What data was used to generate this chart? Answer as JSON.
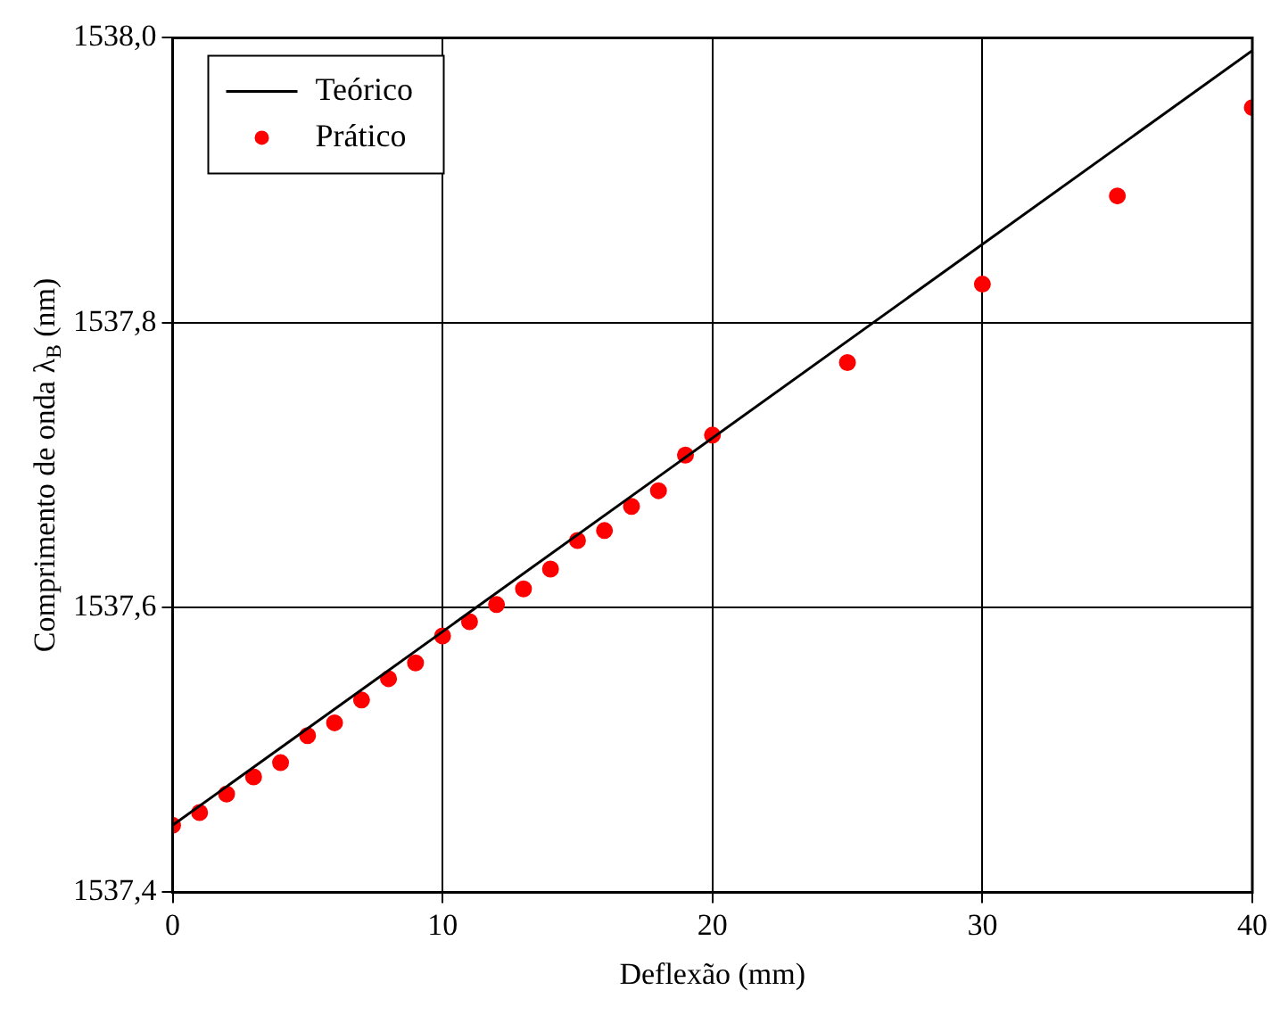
{
  "chart_data": {
    "type": "scatter",
    "xlabel": "Deflexão (mm)",
    "ylabel": "Comprimento de onda λ$_{B}$ (nm)",
    "xlim": [
      0,
      40
    ],
    "xticks": [
      0,
      10,
      20,
      30,
      40
    ],
    "ylim": [
      1537.4,
      1538.0
    ],
    "yticks": [
      {
        "value": 1537.4,
        "label": "1537,4"
      },
      {
        "value": 1537.6,
        "label": "1537,6"
      },
      {
        "value": 1537.8,
        "label": "1537,8"
      },
      {
        "value": 1538.0,
        "label": "1538,0"
      }
    ],
    "grid": true,
    "legend": "top left",
    "series": [
      {
        "name": "Teórico",
        "type": "line",
        "color": "#000000",
        "marker": "none",
        "x": [
          0,
          40
        ],
        "values": [
          1537.447,
          1537.991
        ]
      },
      {
        "name": "Prático",
        "type": "scatter",
        "color": "#ff0000",
        "marker": "circle",
        "x": [
          0,
          1,
          2,
          3,
          4,
          5,
          6,
          7,
          8,
          9,
          10,
          11,
          12,
          13,
          14,
          15,
          16,
          17,
          18,
          19,
          20,
          25,
          30,
          35,
          40
        ],
        "values": [
          1537.447,
          1537.456,
          1537.469,
          1537.481,
          1537.491,
          1537.51,
          1537.519,
          1537.535,
          1537.55,
          1537.561,
          1537.58,
          1537.59,
          1537.602,
          1537.613,
          1537.627,
          1537.647,
          1537.654,
          1537.671,
          1537.682,
          1537.707,
          1537.721,
          1537.772,
          1537.827,
          1537.889,
          1537.951
        ]
      }
    ]
  }
}
